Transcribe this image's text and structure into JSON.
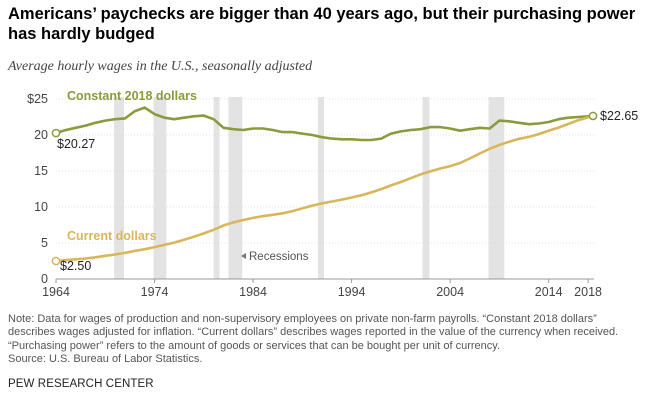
{
  "title": "Americans’ paychecks are bigger than 40 years ago, but their purchasing power has hardly budged",
  "subtitle": "Average hourly wages in the U.S., seasonally adjusted",
  "note_lines": [
    "Note: Data for wages of production and non-supervisory employees on private non-farm payrolls. “Constant 2018 dollars”",
    "describes wages adjusted for inflation. “Current dollars” describes wages reported in the value of the currency when received.",
    "“Purchasing power” refers to the amount of goods or services that can be bought per unit of currency.",
    "Source: U.S. Bureau of Labor Statistics."
  ],
  "source_org": "PEW RESEARCH CENTER",
  "colors": {
    "constant": "#8a9a3c",
    "current": "#d8b75c",
    "recession": "#e3e3e3",
    "grid": "#d9d9d9",
    "axis_text": "#444444"
  },
  "chart_data": {
    "type": "line",
    "title": "Americans’ paychecks are bigger than 40 years ago, but their purchasing power has hardly budged",
    "subtitle": "Average hourly wages in the U.S., seasonally adjusted",
    "xlabel": "",
    "ylabel": "",
    "xlim": [
      1964,
      2018.6
    ],
    "ylim": [
      0,
      25
    ],
    "x_ticks": [
      "1964",
      "1974",
      "1984",
      "1994",
      "2004",
      "2014",
      "2018"
    ],
    "y_ticks": [
      "0",
      "5",
      "10",
      "15",
      "20",
      "$25"
    ],
    "grid": true,
    "recessions": [
      [
        1969.9,
        1970.9
      ],
      [
        1973.9,
        1975.2
      ],
      [
        1980.0,
        1980.6
      ],
      [
        1981.5,
        1982.9
      ],
      [
        1990.6,
        1991.2
      ],
      [
        2001.2,
        2001.9
      ],
      [
        2007.9,
        2009.5
      ]
    ],
    "recessions_label": "Recessions",
    "series": [
      {
        "name": "Constant 2018 dollars",
        "label": "Constant 2018 dollars",
        "color": "#8a9a3c",
        "start_label": "$20.27",
        "end_label": "$22.65",
        "points": [
          [
            1964,
            20.27
          ],
          [
            1965,
            20.7
          ],
          [
            1966,
            21.0
          ],
          [
            1967,
            21.3
          ],
          [
            1968,
            21.7
          ],
          [
            1969,
            22.0
          ],
          [
            1970,
            22.2
          ],
          [
            1971,
            22.3
          ],
          [
            1972,
            23.3
          ],
          [
            1973,
            23.8
          ],
          [
            1974,
            22.9
          ],
          [
            1975,
            22.4
          ],
          [
            1976,
            22.2
          ],
          [
            1977,
            22.4
          ],
          [
            1978,
            22.6
          ],
          [
            1979,
            22.7
          ],
          [
            1980,
            22.2
          ],
          [
            1981,
            21.0
          ],
          [
            1982,
            20.8
          ],
          [
            1983,
            20.7
          ],
          [
            1984,
            20.9
          ],
          [
            1985,
            20.9
          ],
          [
            1986,
            20.7
          ],
          [
            1987,
            20.4
          ],
          [
            1988,
            20.4
          ],
          [
            1989,
            20.2
          ],
          [
            1990,
            20.0
          ],
          [
            1991,
            19.7
          ],
          [
            1992,
            19.5
          ],
          [
            1993,
            19.4
          ],
          [
            1994,
            19.4
          ],
          [
            1995,
            19.3
          ],
          [
            1996,
            19.3
          ],
          [
            1997,
            19.5
          ],
          [
            1998,
            20.2
          ],
          [
            1999,
            20.5
          ],
          [
            2000,
            20.7
          ],
          [
            2001,
            20.8
          ],
          [
            2002,
            21.1
          ],
          [
            2003,
            21.1
          ],
          [
            2004,
            20.9
          ],
          [
            2005,
            20.6
          ],
          [
            2006,
            20.8
          ],
          [
            2007,
            21.0
          ],
          [
            2008,
            20.9
          ],
          [
            2009,
            22.0
          ],
          [
            2010,
            21.9
          ],
          [
            2011,
            21.7
          ],
          [
            2012,
            21.5
          ],
          [
            2013,
            21.6
          ],
          [
            2014,
            21.8
          ],
          [
            2015,
            22.2
          ],
          [
            2016,
            22.4
          ],
          [
            2017,
            22.5
          ],
          [
            2018.5,
            22.65
          ]
        ]
      },
      {
        "name": "Current dollars",
        "label": "Current dollars",
        "color": "#d8b75c",
        "start_label": "$2.50",
        "end_label": "",
        "points": [
          [
            1964,
            2.5
          ],
          [
            1965,
            2.63
          ],
          [
            1966,
            2.73
          ],
          [
            1967,
            2.85
          ],
          [
            1968,
            3.02
          ],
          [
            1969,
            3.22
          ],
          [
            1970,
            3.4
          ],
          [
            1971,
            3.63
          ],
          [
            1972,
            3.9
          ],
          [
            1973,
            4.14
          ],
          [
            1974,
            4.43
          ],
          [
            1975,
            4.73
          ],
          [
            1976,
            5.06
          ],
          [
            1977,
            5.44
          ],
          [
            1978,
            5.88
          ],
          [
            1979,
            6.34
          ],
          [
            1980,
            6.84
          ],
          [
            1981,
            7.43
          ],
          [
            1982,
            7.86
          ],
          [
            1983,
            8.19
          ],
          [
            1984,
            8.48
          ],
          [
            1985,
            8.73
          ],
          [
            1986,
            8.92
          ],
          [
            1987,
            9.13
          ],
          [
            1988,
            9.43
          ],
          [
            1989,
            9.8
          ],
          [
            1990,
            10.19
          ],
          [
            1991,
            10.5
          ],
          [
            1992,
            10.76
          ],
          [
            1993,
            11.03
          ],
          [
            1994,
            11.32
          ],
          [
            1995,
            11.64
          ],
          [
            1996,
            12.03
          ],
          [
            1997,
            12.49
          ],
          [
            1998,
            13.0
          ],
          [
            1999,
            13.47
          ],
          [
            2000,
            14.0
          ],
          [
            2001,
            14.53
          ],
          [
            2002,
            14.95
          ],
          [
            2003,
            15.35
          ],
          [
            2004,
            15.67
          ],
          [
            2005,
            16.11
          ],
          [
            2006,
            16.73
          ],
          [
            2007,
            17.43
          ],
          [
            2008,
            18.08
          ],
          [
            2009,
            18.63
          ],
          [
            2010,
            19.07
          ],
          [
            2011,
            19.47
          ],
          [
            2012,
            19.74
          ],
          [
            2013,
            20.13
          ],
          [
            2014,
            20.61
          ],
          [
            2015,
            21.03
          ],
          [
            2016,
            21.54
          ],
          [
            2017,
            22.05
          ],
          [
            2018.5,
            22.65
          ]
        ]
      }
    ]
  }
}
